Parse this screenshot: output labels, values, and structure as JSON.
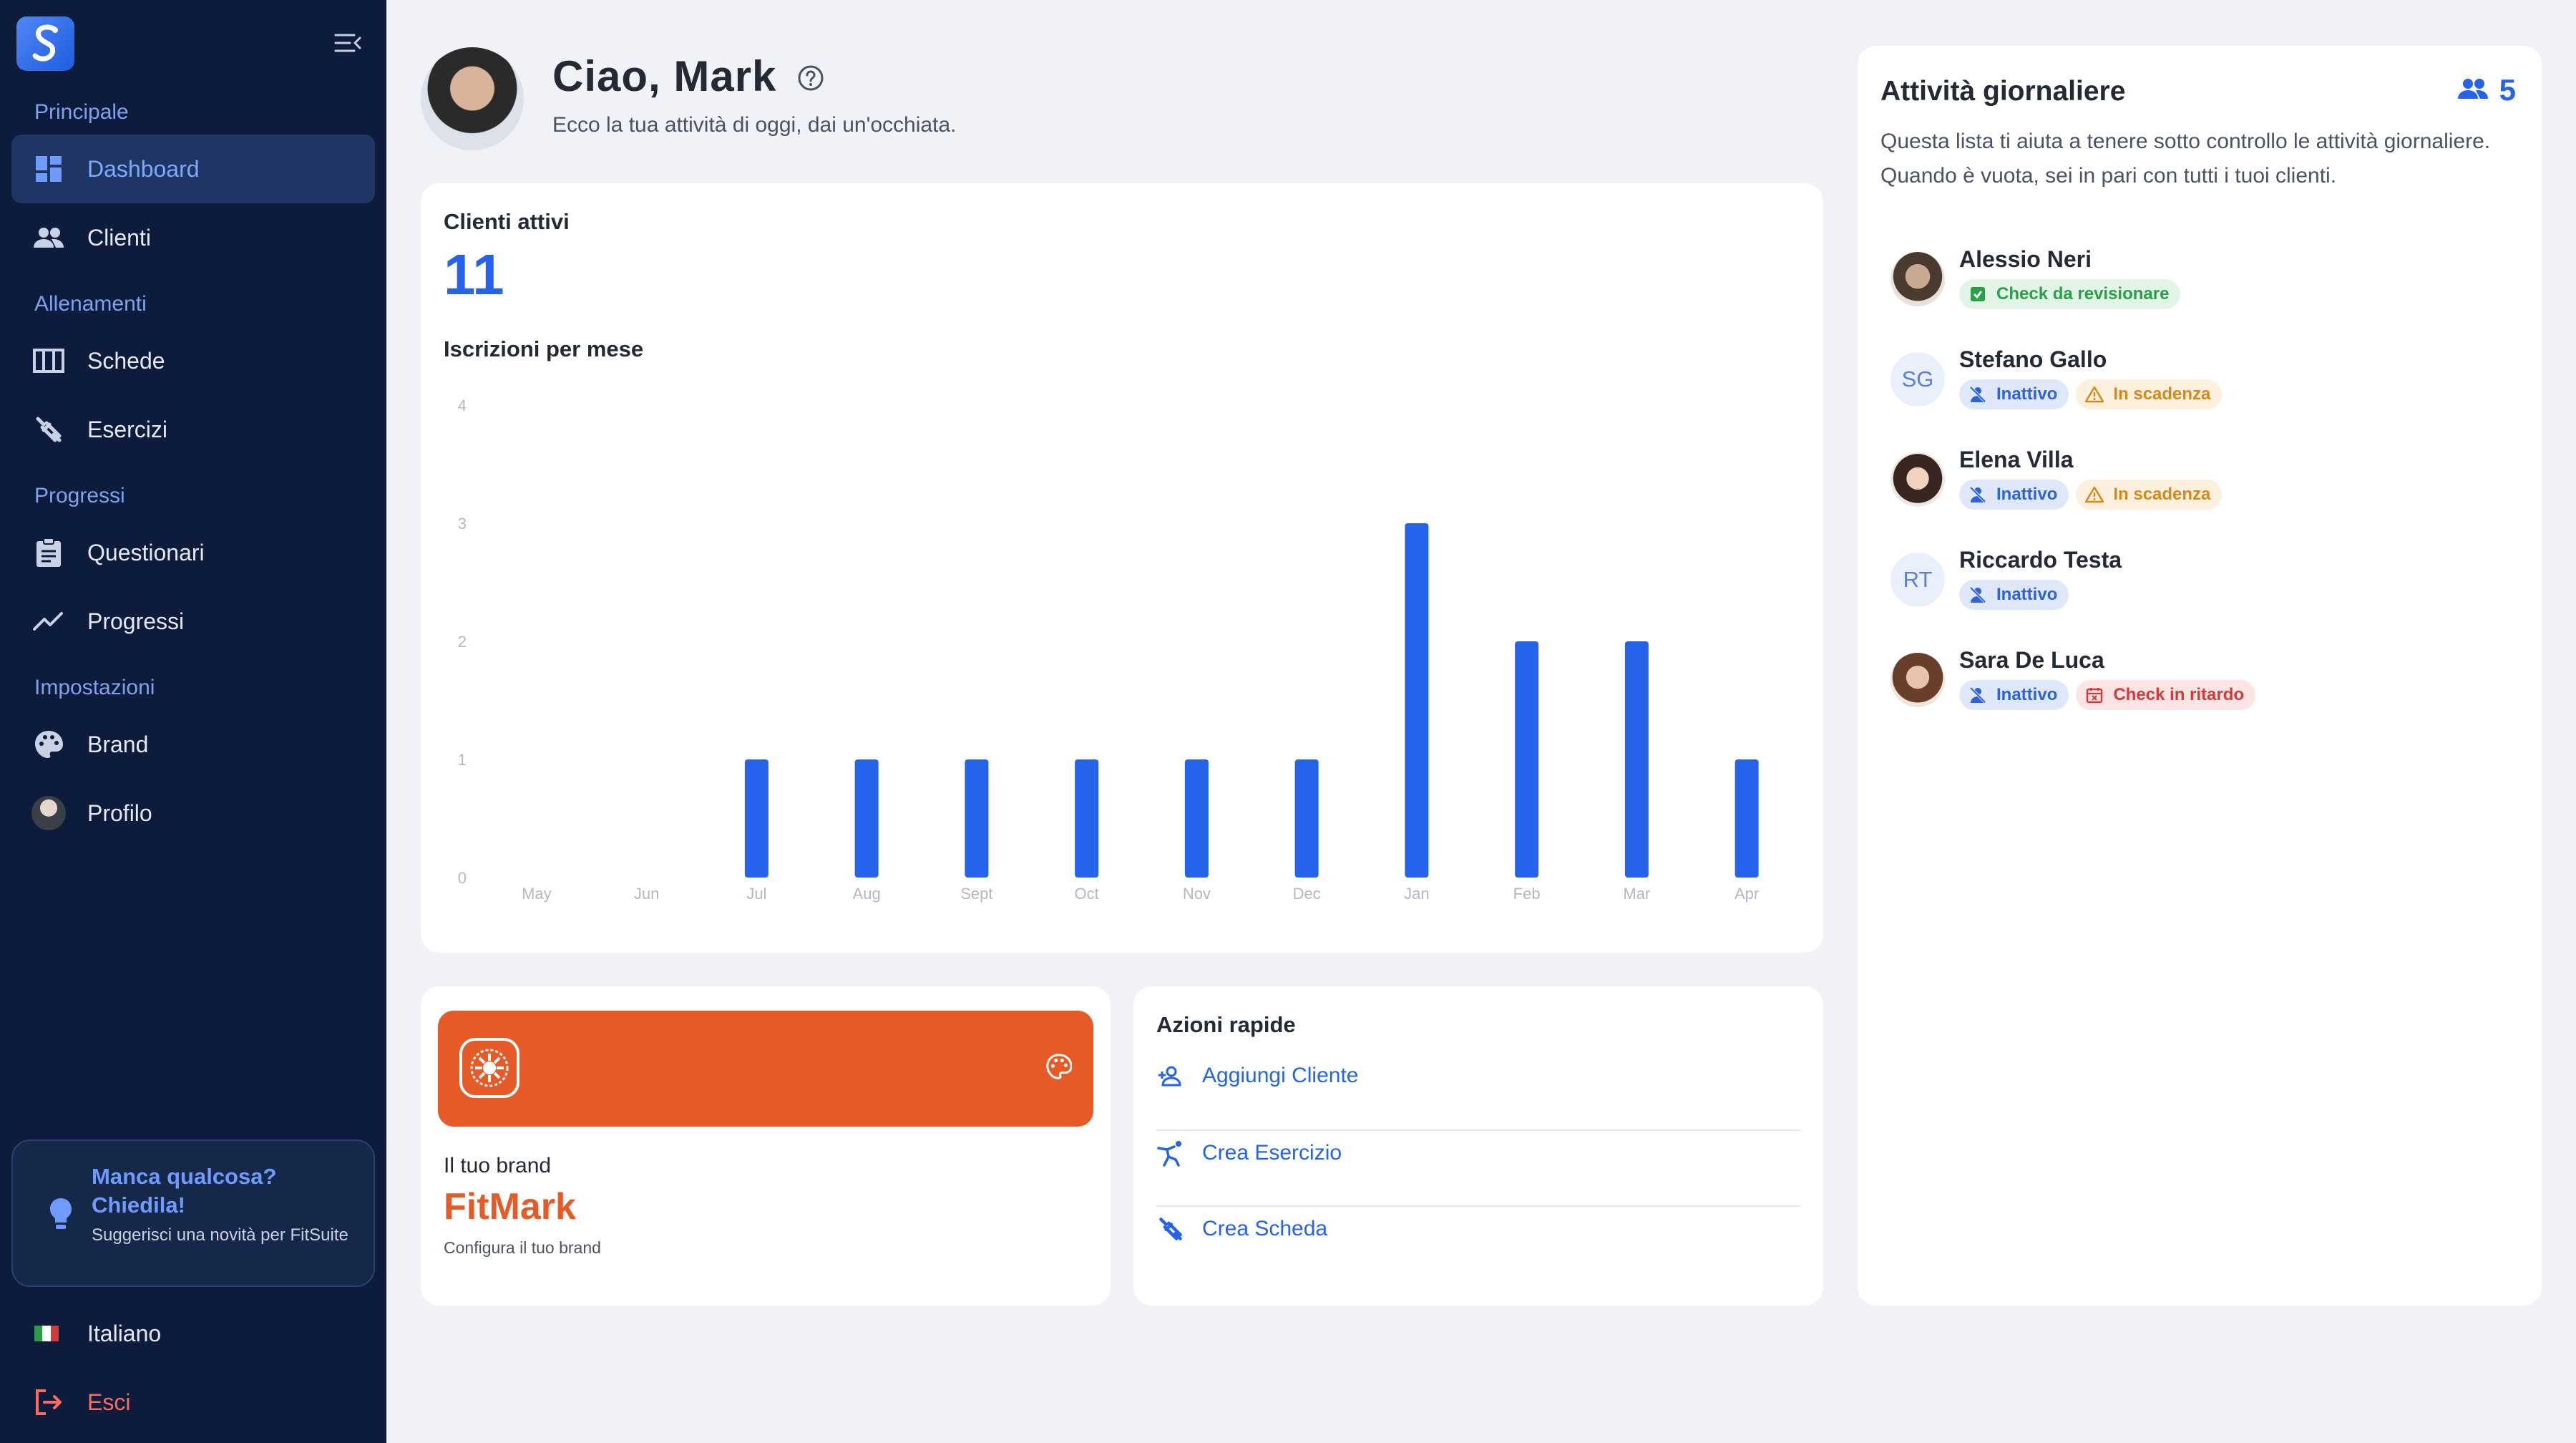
{
  "sidebar": {
    "sections": [
      "Principale",
      "Allenamenti",
      "Progressi",
      "Impostazioni"
    ],
    "items": [
      {
        "label": "Dashboard",
        "icon": "dashboard-icon"
      },
      {
        "label": "Clienti",
        "icon": "people-icon"
      },
      {
        "label": "Schede",
        "icon": "schedule-icon"
      },
      {
        "label": "Esercizi",
        "icon": "dumbbell-icon"
      },
      {
        "label": "Questionari",
        "icon": "clipboard-icon"
      },
      {
        "label": "Progressi",
        "icon": "trend-icon"
      },
      {
        "label": "Brand",
        "icon": "palette-icon"
      },
      {
        "label": "Profilo",
        "icon": "avatar"
      }
    ],
    "active_item": "Dashboard",
    "suggest": {
      "title": "Manca qualcosa? Chiedila!",
      "text": "Suggerisci una novità per FitSuite"
    },
    "language": "Italiano",
    "logout": "Esci"
  },
  "header": {
    "greeting": "Ciao, Mark",
    "subtitle": "Ecco la tua attività di oggi, dai un'occhiata."
  },
  "stats": {
    "active_clients_label": "Clienti attivi",
    "active_clients_value": "11",
    "chart_title": "Iscrizioni per mese"
  },
  "chart_data": {
    "type": "bar",
    "title": "Iscrizioni per mese",
    "categories": [
      "May",
      "Jun",
      "Jul",
      "Aug",
      "Sept",
      "Oct",
      "Nov",
      "Dec",
      "Jan",
      "Feb",
      "Mar",
      "Apr"
    ],
    "values": [
      0,
      0,
      1,
      1,
      1,
      1,
      1,
      1,
      3,
      2,
      2,
      1
    ],
    "yticks": [
      "0",
      "1",
      "2",
      "3",
      "4"
    ],
    "ylim": [
      0,
      4
    ],
    "color": "#2563eb",
    "grid": false
  },
  "brand": {
    "color": "#e55a26",
    "label": "Il tuo brand",
    "name": "FitMark",
    "configure": "Configura il tuo brand"
  },
  "quick_actions": {
    "title": "Azioni rapide",
    "items": [
      {
        "label": "Aggiungi Cliente",
        "icon": "add-user-icon"
      },
      {
        "label": "Crea Esercizio",
        "icon": "exercise-icon"
      },
      {
        "label": "Crea Scheda",
        "icon": "dumbbell-icon"
      }
    ]
  },
  "activities": {
    "title": "Attività giornaliere",
    "count": "5",
    "description": "Questa lista ti aiuta a tenere sotto controllo le attività giornaliere. Quando è vuota, sei in pari con tutti i tuoi clienti.",
    "clients": [
      {
        "name": "Alessio Neri",
        "initials": "",
        "badges": [
          {
            "text": "Check da revisionare",
            "type": "green"
          }
        ]
      },
      {
        "name": "Stefano Gallo",
        "initials": "SG",
        "badges": [
          {
            "text": "Inattivo",
            "type": "blue"
          },
          {
            "text": "In scadenza",
            "type": "orange"
          }
        ]
      },
      {
        "name": "Elena Villa",
        "initials": "",
        "badges": [
          {
            "text": "Inattivo",
            "type": "blue"
          },
          {
            "text": "In scadenza",
            "type": "orange"
          }
        ]
      },
      {
        "name": "Riccardo Testa",
        "initials": "RT",
        "badges": [
          {
            "text": "Inattivo",
            "type": "blue"
          }
        ]
      },
      {
        "name": "Sara De Luca",
        "initials": "",
        "badges": [
          {
            "text": "Inattivo",
            "type": "blue"
          },
          {
            "text": "Check in ritardo",
            "type": "red"
          }
        ]
      }
    ]
  },
  "colors": {
    "accent": "#2563eb",
    "sidebar_bg": "#0d1c3c",
    "brand": "#e55a26"
  }
}
